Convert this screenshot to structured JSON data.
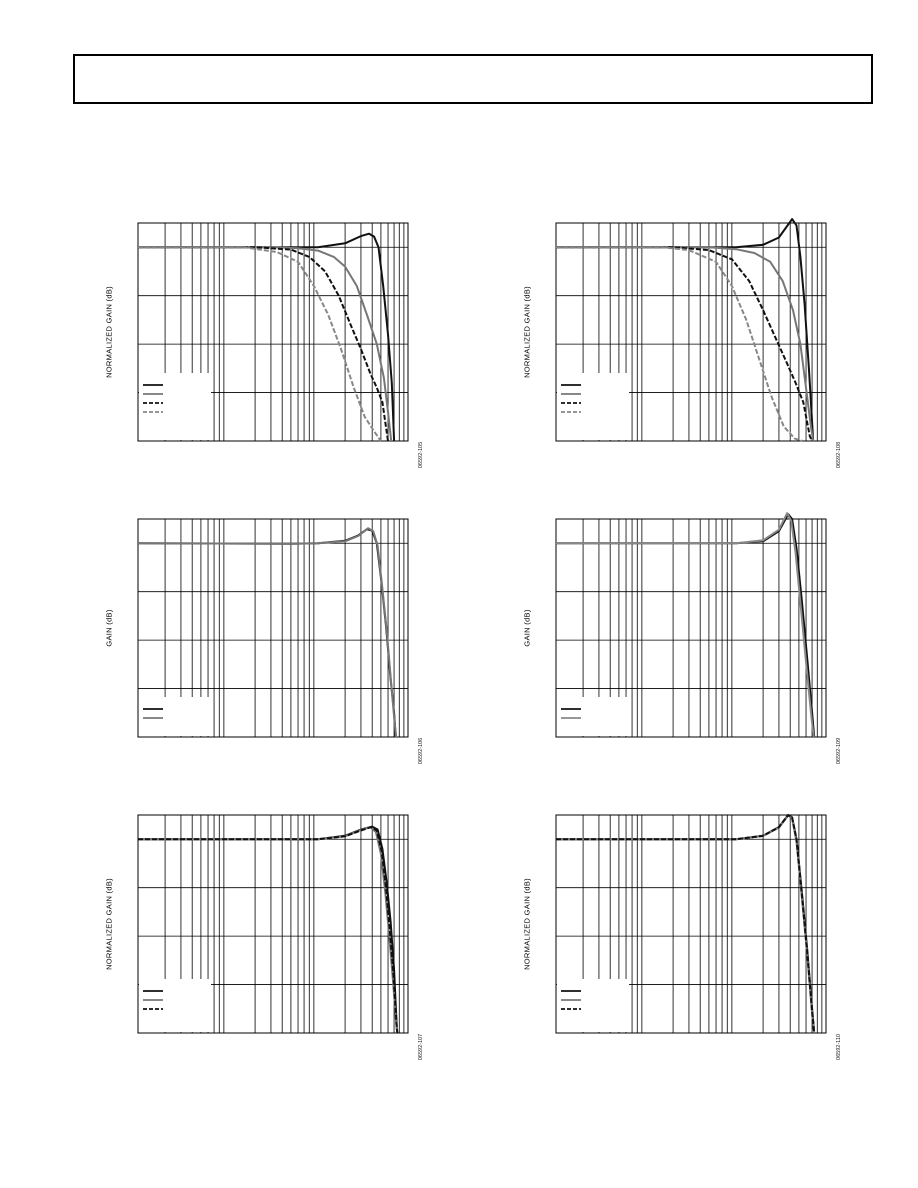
{
  "header": {
    "text": ""
  },
  "chart_data": [
    {
      "id": "c1",
      "type": "line",
      "x_scale": "log",
      "x_decades": [
        1,
        1000
      ],
      "ylim": [
        -40,
        5
      ],
      "ylabel": "NORMALIZED GAIN (dB)",
      "figure_id": "06592-105",
      "series": [
        {
          "color": "#111111",
          "dash": "solid",
          "points": [
            [
              1,
              0
            ],
            [
              50,
              0
            ],
            [
              100,
              0
            ],
            [
              200,
              0.8
            ],
            [
              300,
              2.3
            ],
            [
              370,
              2.8
            ],
            [
              420,
              2.2
            ],
            [
              470,
              0
            ],
            [
              530,
              -8
            ],
            [
              600,
              -18
            ],
            [
              660,
              -28
            ],
            [
              700,
              -40
            ]
          ]
        },
        {
          "color": "#777777",
          "dash": "solid",
          "points": [
            [
              1,
              0
            ],
            [
              30,
              0
            ],
            [
              60,
              -0.2
            ],
            [
              100,
              -0.7
            ],
            [
              150,
              -2
            ],
            [
              200,
              -4
            ],
            [
              270,
              -8
            ],
            [
              350,
              -14
            ],
            [
              450,
              -20
            ],
            [
              540,
              -27
            ],
            [
              600,
              -34
            ],
            [
              650,
              -40
            ]
          ]
        },
        {
          "color": "#111111",
          "dash": "dashed",
          "points": [
            [
              1,
              0
            ],
            [
              20,
              0
            ],
            [
              50,
              -0.5
            ],
            [
              80,
              -2
            ],
            [
              120,
              -5
            ],
            [
              170,
              -10
            ],
            [
              230,
              -16
            ],
            [
              300,
              -21
            ],
            [
              380,
              -26
            ],
            [
              450,
              -29
            ],
            [
              520,
              -32
            ],
            [
              600,
              -40
            ]
          ]
        },
        {
          "color": "#888888",
          "dash": "dashed",
          "points": [
            [
              1,
              0
            ],
            [
              15,
              0
            ],
            [
              35,
              -1
            ],
            [
              60,
              -3
            ],
            [
              90,
              -8
            ],
            [
              130,
              -14
            ],
            [
              180,
              -21
            ],
            [
              250,
              -29
            ],
            [
              330,
              -35
            ],
            [
              420,
              -38
            ],
            [
              500,
              -40
            ]
          ]
        }
      ]
    },
    {
      "id": "c2",
      "type": "line",
      "x_scale": "log",
      "x_decades": [
        1,
        1000
      ],
      "ylim": [
        -40,
        5
      ],
      "ylabel": "NORMALIZED GAIN (dB)",
      "figure_id": "06592-108",
      "series": [
        {
          "color": "#111111",
          "dash": "solid",
          "points": [
            [
              1,
              0
            ],
            [
              100,
              0
            ],
            [
              200,
              0.5
            ],
            [
              300,
              2
            ],
            [
              420,
              5.8
            ],
            [
              470,
              4.5
            ],
            [
              520,
              -2
            ],
            [
              580,
              -12
            ],
            [
              650,
              -26
            ],
            [
              720,
              -40
            ]
          ]
        },
        {
          "color": "#777777",
          "dash": "solid",
          "points": [
            [
              1,
              0
            ],
            [
              50,
              0
            ],
            [
              100,
              -0.4
            ],
            [
              160,
              -1.2
            ],
            [
              240,
              -3
            ],
            [
              330,
              -7
            ],
            [
              430,
              -13
            ],
            [
              520,
              -20
            ],
            [
              600,
              -29
            ],
            [
              680,
              -37
            ],
            [
              720,
              -40
            ]
          ]
        },
        {
          "color": "#111111",
          "dash": "dashed",
          "points": [
            [
              1,
              0
            ],
            [
              20,
              0
            ],
            [
              50,
              -0.6
            ],
            [
              90,
              -2.5
            ],
            [
              140,
              -7
            ],
            [
              200,
              -13
            ],
            [
              280,
              -19
            ],
            [
              370,
              -24
            ],
            [
              460,
              -28
            ],
            [
              560,
              -32
            ],
            [
              660,
              -39
            ],
            [
              700,
              -40
            ]
          ]
        },
        {
          "color": "#888888",
          "dash": "dashed",
          "points": [
            [
              1,
              0
            ],
            [
              15,
              0
            ],
            [
              30,
              -0.6
            ],
            [
              60,
              -3
            ],
            [
              90,
              -8
            ],
            [
              130,
              -15
            ],
            [
              180,
              -23
            ],
            [
              250,
              -31
            ],
            [
              340,
              -37
            ],
            [
              450,
              -39.5
            ],
            [
              550,
              -40
            ]
          ]
        }
      ]
    },
    {
      "id": "c3",
      "type": "line",
      "x_scale": "log",
      "x_decades": [
        1,
        1000
      ],
      "ylim": [
        -40,
        5
      ],
      "ylabel": "GAIN (dB)",
      "figure_id": "06592-106",
      "series": [
        {
          "color": "#111111",
          "dash": "solid",
          "points": [
            [
              1,
              0
            ],
            [
              50,
              -0.1
            ],
            [
              100,
              0
            ],
            [
              200,
              0.5
            ],
            [
              280,
              1.6
            ],
            [
              350,
              2.9
            ],
            [
              400,
              2.6
            ],
            [
              450,
              0
            ],
            [
              500,
              -7
            ],
            [
              570,
              -17
            ],
            [
              640,
              -28
            ],
            [
              700,
              -35
            ],
            [
              730,
              -40
            ]
          ]
        },
        {
          "color": "#777777",
          "dash": "solid",
          "points": [
            [
              1,
              0
            ],
            [
              50,
              -0.1
            ],
            [
              100,
              0
            ],
            [
              200,
              0.4
            ],
            [
              280,
              1.5
            ],
            [
              360,
              3.1
            ],
            [
              410,
              2.5
            ],
            [
              460,
              -0.5
            ],
            [
              510,
              -8
            ],
            [
              580,
              -18
            ],
            [
              650,
              -29
            ],
            [
              710,
              -37
            ],
            [
              740,
              -40
            ]
          ]
        }
      ]
    },
    {
      "id": "c4",
      "type": "line",
      "x_scale": "log",
      "x_decades": [
        1,
        1000
      ],
      "ylim": [
        -40,
        5
      ],
      "ylabel": "GAIN (dB)",
      "figure_id": "06592-109",
      "series": [
        {
          "color": "#111111",
          "dash": "solid",
          "points": [
            [
              1,
              0
            ],
            [
              100,
              0
            ],
            [
              200,
              0.4
            ],
            [
              300,
              2.5
            ],
            [
              380,
              6
            ],
            [
              420,
              5
            ],
            [
              470,
              -1
            ],
            [
              540,
              -12
            ],
            [
              620,
              -24
            ],
            [
              700,
              -35
            ],
            [
              740,
              -40
            ]
          ]
        },
        {
          "color": "#888888",
          "dash": "solid",
          "points": [
            [
              1,
              0
            ],
            [
              100,
              0
            ],
            [
              200,
              0.6
            ],
            [
              300,
              2.8
            ],
            [
              370,
              6.2
            ],
            [
              410,
              4.6
            ],
            [
              460,
              -2
            ],
            [
              530,
              -14
            ],
            [
              610,
              -26
            ],
            [
              690,
              -36
            ],
            [
              730,
              -40
            ]
          ]
        }
      ]
    },
    {
      "id": "c5",
      "type": "line",
      "x_scale": "log",
      "x_decades": [
        1,
        1000
      ],
      "ylim": [
        -40,
        5
      ],
      "ylabel": "NORMALIZED GAIN (dB)",
      "figure_id": "06592-107",
      "series": [
        {
          "color": "#111111",
          "dash": "solid",
          "points": [
            [
              1,
              0
            ],
            [
              100,
              0
            ],
            [
              200,
              0.7
            ],
            [
              300,
              2
            ],
            [
              400,
              2.6
            ],
            [
              460,
              2
            ],
            [
              520,
              -2
            ],
            [
              580,
              -9
            ],
            [
              640,
              -17
            ],
            [
              700,
              -27
            ],
            [
              750,
              -39
            ],
            [
              760,
              -40
            ]
          ]
        },
        {
          "color": "#777777",
          "dash": "solid",
          "points": [
            [
              1,
              0
            ],
            [
              100,
              0
            ],
            [
              200,
              0.6
            ],
            [
              300,
              1.9
            ],
            [
              380,
              2.5
            ],
            [
              440,
              1.5
            ],
            [
              500,
              -3
            ],
            [
              560,
              -11
            ],
            [
              620,
              -20
            ],
            [
              680,
              -29
            ],
            [
              740,
              -38
            ],
            [
              760,
              -40
            ]
          ]
        },
        {
          "color": "#111111",
          "dash": "dashed",
          "points": [
            [
              1,
              0
            ],
            [
              100,
              0
            ],
            [
              200,
              0.6
            ],
            [
              300,
              1.8
            ],
            [
              390,
              2.5
            ],
            [
              450,
              1.8
            ],
            [
              510,
              -2.5
            ],
            [
              570,
              -10
            ],
            [
              630,
              -19
            ],
            [
              690,
              -28
            ],
            [
              745,
              -38
            ],
            [
              760,
              -40
            ]
          ]
        }
      ]
    },
    {
      "id": "c6",
      "type": "line",
      "x_scale": "log",
      "x_decades": [
        1,
        1000
      ],
      "ylim": [
        -40,
        5
      ],
      "ylabel": "NORMALIZED GAIN (dB)",
      "figure_id": "06592-110",
      "series": [
        {
          "color": "#111111",
          "dash": "solid",
          "points": [
            [
              1,
              0
            ],
            [
              100,
              0
            ],
            [
              200,
              0.7
            ],
            [
              300,
              2.5
            ],
            [
              380,
              5
            ],
            [
              420,
              4.5
            ],
            [
              470,
              0
            ],
            [
              540,
              -11
            ],
            [
              620,
              -23
            ],
            [
              700,
              -35
            ],
            [
              740,
              -40
            ]
          ]
        },
        {
          "color": "#777777",
          "dash": "solid",
          "points": [
            [
              1,
              0
            ],
            [
              100,
              0
            ],
            [
              200,
              0.7
            ],
            [
              300,
              2.4
            ],
            [
              380,
              4.9
            ],
            [
              420,
              4.3
            ],
            [
              470,
              -0.5
            ],
            [
              540,
              -12
            ],
            [
              620,
              -24
            ],
            [
              700,
              -36
            ],
            [
              740,
              -40
            ]
          ]
        },
        {
          "color": "#111111",
          "dash": "dashed",
          "points": [
            [
              1,
              0
            ],
            [
              100,
              0
            ],
            [
              200,
              0.7
            ],
            [
              300,
              2.5
            ],
            [
              380,
              5
            ],
            [
              420,
              4.5
            ],
            [
              470,
              0
            ],
            [
              540,
              -11.5
            ],
            [
              620,
              -23.5
            ],
            [
              700,
              -35.5
            ],
            [
              740,
              -40
            ]
          ]
        }
      ]
    }
  ]
}
